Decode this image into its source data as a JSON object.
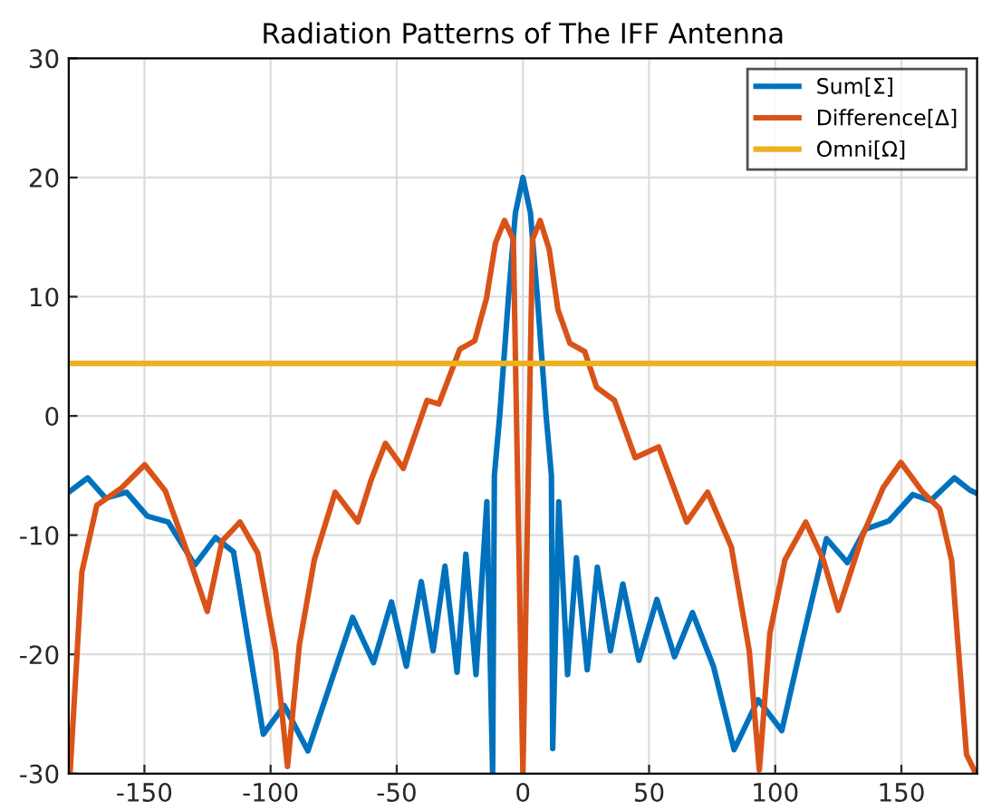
{
  "chart_data": {
    "type": "line",
    "title": "Radiation Patterns of The IFF Antenna",
    "xlim": [
      -180,
      180
    ],
    "xticks": [
      -150,
      -100,
      -50,
      0,
      50,
      100,
      150
    ],
    "ylim": [
      -30,
      30
    ],
    "yticks": [
      -30,
      -20,
      -10,
      0,
      10,
      20,
      30
    ],
    "grid": true,
    "legend": "top right",
    "marker": "none",
    "line_style": "solid",
    "series": [
      {
        "name": "Sum[Σ]",
        "color": "#0072bd",
        "x": [
          -180,
          -172.5,
          -165.4,
          -157.1,
          -148.9,
          -140.6,
          -130,
          -121.8,
          -114.7,
          -102.9,
          -94.6,
          -85.2,
          -75.7,
          -67.5,
          -59.2,
          -52.1,
          -46.2,
          -40.3,
          -35.6,
          -30.9,
          -26.1,
          -22.6,
          -18.6,
          -14.3,
          -12,
          -11.3,
          -9.2,
          -5.7,
          -3,
          0,
          3,
          5.7,
          9.2,
          11.3,
          11.8,
          14.2,
          17.7,
          21.2,
          25.5,
          29.5,
          34.7,
          39.6,
          46,
          53.1,
          60.1,
          67.2,
          75.5,
          83.7,
          93.2,
          102.6,
          110.9,
          120.3,
          128.6,
          135.7,
          145.1,
          154.5,
          161.6,
          171,
          177,
          180
        ],
        "values": [
          -6.4,
          -5.2,
          -6.9,
          -6.4,
          -8.4,
          -8.9,
          -12.5,
          -10.2,
          -11.4,
          -26.7,
          -24.3,
          -28.1,
          -22.1,
          -16.9,
          -20.7,
          -15.6,
          -21,
          -13.9,
          -19.7,
          -12.6,
          -21.5,
          -11.6,
          -21.7,
          -7.2,
          -30,
          -5,
          0,
          10,
          17,
          20,
          17,
          10,
          0,
          -5,
          -27.9,
          -7.2,
          -21.7,
          -11.9,
          -21.3,
          -12.7,
          -19.7,
          -14.1,
          -20.5,
          -15.4,
          -20.2,
          -16.5,
          -21,
          -28,
          -23.8,
          -26.4,
          -18.7,
          -10.3,
          -12.3,
          -9.5,
          -8.8,
          -6.6,
          -7.1,
          -5.2,
          -6.2,
          -6.5
        ]
      },
      {
        "name": "Difference[Δ]",
        "color": "#d95319",
        "x": [
          -179.5,
          -174.8,
          -168.9,
          -159.4,
          -149.9,
          -141.7,
          -133.4,
          -125.1,
          -119.2,
          -112.1,
          -105.1,
          -98,
          -93.3,
          -88.6,
          -82.7,
          -74.4,
          -65.4,
          -60.2,
          -54.5,
          -47.4,
          -38,
          -33.3,
          -25,
          -19.1,
          -14.4,
          -10.9,
          -7.3,
          -3.8,
          0,
          3.8,
          6.8,
          10.4,
          13.9,
          18.6,
          24.5,
          29.2,
          36.3,
          44.5,
          53.8,
          64.9,
          73.2,
          82.6,
          89.7,
          93.7,
          97.9,
          103.8,
          112.1,
          119.1,
          125,
          134.5,
          142.8,
          149.8,
          158.1,
          165.2,
          169.9,
          175.8,
          179.5
        ],
        "values": [
          -30,
          -13.1,
          -7.5,
          -6.1,
          -4.1,
          -6.3,
          -11.2,
          -16.4,
          -10.5,
          -8.9,
          -11.5,
          -19.7,
          -29.4,
          -19.2,
          -12.1,
          -6.4,
          -8.9,
          -5.4,
          -2.3,
          -4.4,
          1.3,
          1,
          5.6,
          6.3,
          9.9,
          14.5,
          16.4,
          14.8,
          -30,
          14.8,
          16.4,
          14,
          8.9,
          6.1,
          5.4,
          2.4,
          1.3,
          -3.5,
          -2.6,
          -8.9,
          -6.4,
          -11,
          -19.7,
          -29.7,
          -18.2,
          -12.1,
          -8.9,
          -12.1,
          -16.3,
          -10.1,
          -6,
          -3.9,
          -6.3,
          -7.8,
          -12.1,
          -28.4,
          -30
        ]
      },
      {
        "name": "Omni[Ω]",
        "color": "#edb120",
        "x": [
          -180,
          -90,
          0,
          90,
          180
        ],
        "values": [
          4.4,
          4.4,
          4.4,
          4.4,
          4.4
        ]
      }
    ]
  }
}
